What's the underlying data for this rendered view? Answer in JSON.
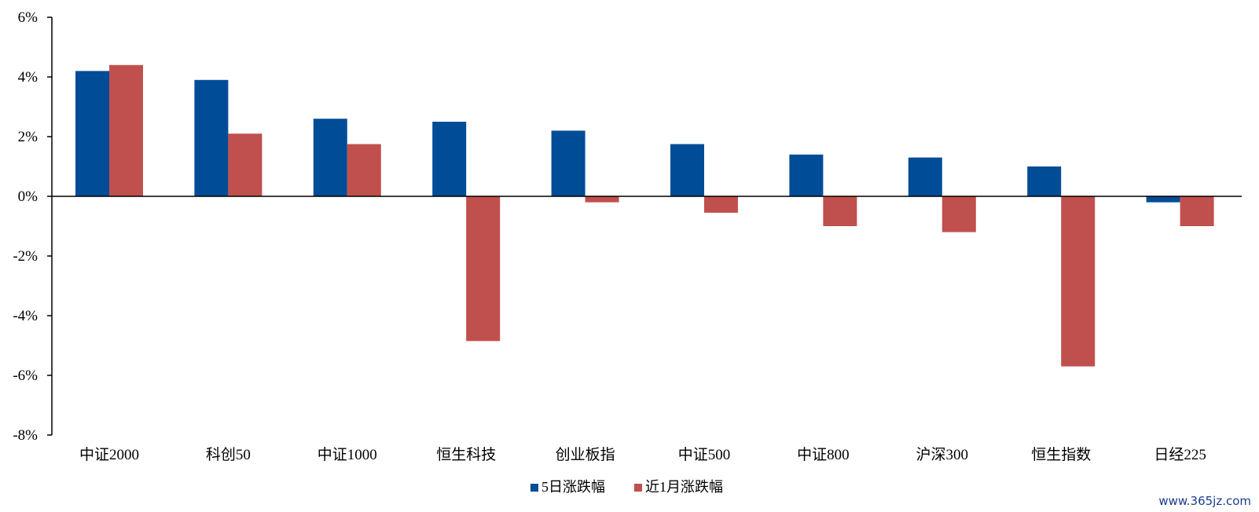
{
  "chart_data": {
    "type": "bar",
    "categories": [
      "中证2000",
      "科创50",
      "中证1000",
      "恒生科技",
      "创业板指",
      "中证500",
      "中证800",
      "沪深300",
      "恒生指数",
      "日经225"
    ],
    "series": [
      {
        "name": "5日涨跌幅",
        "color": "#004C97",
        "values": [
          4.2,
          3.9,
          2.6,
          2.5,
          2.2,
          1.75,
          1.4,
          1.3,
          1.0,
          -0.2
        ]
      },
      {
        "name": "近1月涨跌幅",
        "color": "#C0504D",
        "values": [
          4.4,
          2.1,
          1.75,
          -4.85,
          -0.2,
          -0.55,
          -1.0,
          -1.2,
          -5.7,
          -1.0
        ]
      }
    ],
    "y_ticks": [
      "6%",
      "4%",
      "2%",
      "0%",
      "-2%",
      "-4%",
      "-6%",
      "-8%"
    ],
    "ylim": [
      -8,
      6
    ],
    "grid": false,
    "legend_position": "bottom"
  },
  "watermark": "www.365jz.com"
}
